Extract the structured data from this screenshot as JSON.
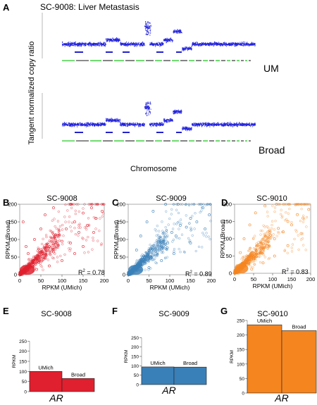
{
  "figure": {
    "panel_a": {
      "letter": "A",
      "title": "SC-9008: Liver Metastasis",
      "ylabel": "Tangent normalized copy ratio",
      "xlabel": "Chromosome",
      "tracks": [
        {
          "label": "UM"
        },
        {
          "label": "Broad"
        }
      ]
    },
    "scatter_panels": [
      {
        "letter": "B",
        "title": "SC-9008",
        "color": "#e0202e",
        "r2_prefix": "R",
        "r2_sup": "2",
        "r2_value": " = 0.78"
      },
      {
        "letter": "C",
        "title": "SC-9009",
        "color": "#3a80b8",
        "r2_prefix": "R",
        "r2_sup": "2",
        "r2_value": " = 0.89"
      },
      {
        "letter": "D",
        "title": "SC-9010",
        "color": "#f5851f",
        "r2_prefix": "R",
        "r2_sup": "2",
        "r2_value": " = 0.83"
      }
    ],
    "bar_panels": [
      {
        "letter": "E",
        "title": "SC-9008",
        "color": "#e0202e",
        "gene": "AR"
      },
      {
        "letter": "F",
        "title": "SC-9009",
        "color": "#3a80b8",
        "gene": "AR"
      },
      {
        "letter": "G",
        "title": "SC-9010",
        "color": "#f5851f",
        "gene": "AR"
      }
    ]
  },
  "chart_data": [
    {
      "type": "scatter",
      "title": "SC-9008",
      "xlabel": "RPKM (UMich)",
      "ylabel": "RPKM (Broad)",
      "xlim": [
        0,
        200
      ],
      "ylim": [
        0,
        200
      ],
      "xticks": [
        0,
        50,
        100,
        150,
        200
      ],
      "yticks": [
        0,
        50,
        100,
        150,
        200
      ],
      "annotation": "R2 = 0.78",
      "sample_points": [
        [
          5,
          4
        ],
        [
          10,
          14
        ],
        [
          18,
          12
        ],
        [
          25,
          30
        ],
        [
          30,
          22
        ],
        [
          40,
          45
        ],
        [
          45,
          35
        ],
        [
          55,
          60
        ],
        [
          60,
          48
        ],
        [
          70,
          80
        ],
        [
          80,
          65
        ],
        [
          90,
          110
        ],
        [
          100,
          95
        ],
        [
          110,
          130
        ],
        [
          120,
          90
        ],
        [
          130,
          150
        ],
        [
          140,
          120
        ],
        [
          150,
          175
        ],
        [
          160,
          140
        ],
        [
          170,
          190
        ],
        [
          180,
          160
        ],
        [
          195,
          180
        ],
        [
          20,
          60
        ],
        [
          15,
          80
        ],
        [
          35,
          100
        ],
        [
          50,
          130
        ],
        [
          8,
          150
        ],
        [
          60,
          170
        ],
        [
          80,
          190
        ],
        [
          120,
          200
        ],
        [
          40,
          15
        ],
        [
          70,
          25
        ],
        [
          100,
          40
        ],
        [
          130,
          60
        ],
        [
          150,
          80
        ],
        [
          175,
          120
        ]
      ]
    },
    {
      "type": "scatter",
      "title": "SC-9009",
      "xlabel": "RPKM (UMich)",
      "ylabel": "RPKM (Broad)",
      "xlim": [
        0,
        200
      ],
      "ylim": [
        0,
        200
      ],
      "xticks": [
        0,
        50,
        100,
        150,
        200
      ],
      "yticks": [
        0,
        50,
        100,
        150,
        200
      ],
      "annotation": "R2 = 0.89",
      "sample_points": [
        [
          5,
          6
        ],
        [
          12,
          10
        ],
        [
          18,
          20
        ],
        [
          25,
          22
        ],
        [
          30,
          35
        ],
        [
          40,
          38
        ],
        [
          48,
          55
        ],
        [
          55,
          50
        ],
        [
          65,
          75
        ],
        [
          75,
          70
        ],
        [
          85,
          95
        ],
        [
          95,
          90
        ],
        [
          105,
          120
        ],
        [
          115,
          110
        ],
        [
          125,
          140
        ],
        [
          140,
          135
        ],
        [
          150,
          160
        ],
        [
          165,
          150
        ],
        [
          180,
          190
        ],
        [
          195,
          170
        ],
        [
          20,
          70
        ],
        [
          30,
          110
        ],
        [
          45,
          150
        ],
        [
          60,
          180
        ],
        [
          90,
          200
        ],
        [
          120,
          200
        ],
        [
          50,
          20
        ],
        [
          80,
          40
        ],
        [
          110,
          60
        ],
        [
          150,
          90
        ],
        [
          185,
          130
        ]
      ]
    },
    {
      "type": "scatter",
      "title": "SC-9010",
      "xlabel": "RPKM (UMich)",
      "ylabel": "RPKM (Broad)",
      "xlim": [
        0,
        200
      ],
      "ylim": [
        0,
        200
      ],
      "xticks": [
        0,
        50,
        100,
        150,
        200
      ],
      "yticks": [
        0,
        50,
        100,
        150,
        200
      ],
      "annotation": "R2 = 0.83",
      "sample_points": [
        [
          5,
          4
        ],
        [
          10,
          12
        ],
        [
          18,
          16
        ],
        [
          25,
          28
        ],
        [
          32,
          25
        ],
        [
          40,
          45
        ],
        [
          50,
          42
        ],
        [
          58,
          65
        ],
        [
          66,
          60
        ],
        [
          75,
          85
        ],
        [
          85,
          80
        ],
        [
          95,
          110
        ],
        [
          105,
          100
        ],
        [
          115,
          130
        ],
        [
          128,
          120
        ],
        [
          140,
          150
        ],
        [
          150,
          140
        ],
        [
          165,
          170
        ],
        [
          180,
          160
        ],
        [
          195,
          185
        ],
        [
          15,
          60
        ],
        [
          25,
          100
        ],
        [
          40,
          140
        ],
        [
          55,
          175
        ],
        [
          80,
          195
        ],
        [
          110,
          200
        ],
        [
          45,
          12
        ],
        [
          75,
          30
        ],
        [
          105,
          50
        ],
        [
          140,
          80
        ],
        [
          175,
          115
        ]
      ]
    },
    {
      "type": "bar",
      "title": "SC-9008",
      "categories": [
        "UMich",
        "Broad"
      ],
      "values": [
        100,
        65
      ],
      "ylabel": "RPKM",
      "ylim": [
        0,
        300
      ],
      "yticks": [
        0,
        50,
        100,
        150,
        200,
        250
      ],
      "xlabel": "AR"
    },
    {
      "type": "bar",
      "title": "SC-9009",
      "categories": [
        "UMich",
        "Broad"
      ],
      "values": [
        94,
        93
      ],
      "ylabel": "RPKM",
      "ylim": [
        0,
        300
      ],
      "yticks": [
        0,
        50,
        100,
        150,
        200,
        250
      ],
      "xlabel": "AR"
    },
    {
      "type": "bar",
      "title": "SC-9010",
      "categories": [
        "UMich",
        "Broad"
      ],
      "values": [
        235,
        215
      ],
      "ylabel": "RPKM",
      "ylim": [
        0,
        250
      ],
      "yticks": [
        0,
        50,
        100,
        150,
        200,
        250
      ],
      "xlabel": "AR"
    }
  ]
}
